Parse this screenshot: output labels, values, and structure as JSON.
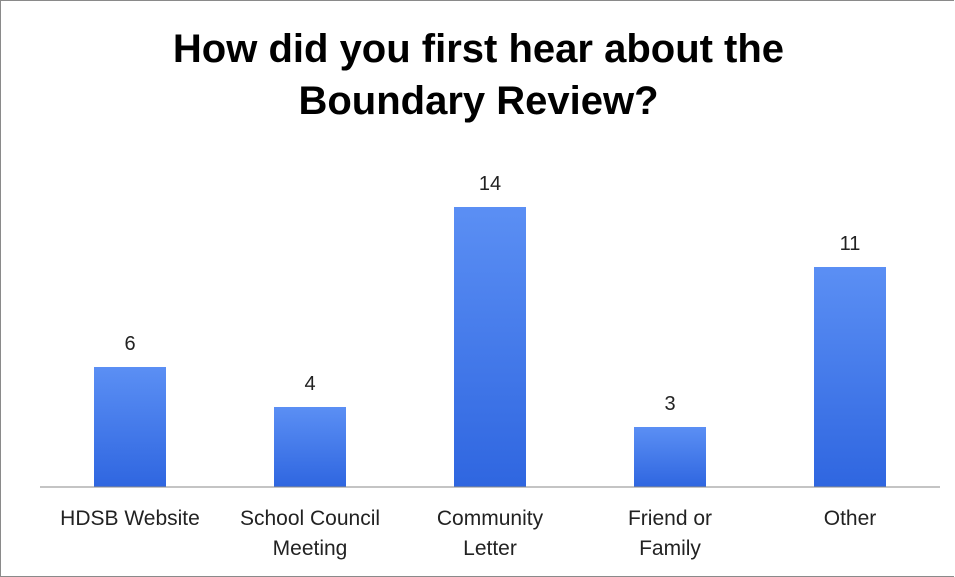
{
  "chart_data": {
    "type": "bar",
    "title": [
      "How did you first hear about the",
      "Boundary Review?"
    ],
    "categories": [
      [
        "HDSB Website"
      ],
      [
        "School Council",
        "Meeting"
      ],
      [
        "Community",
        "Letter"
      ],
      [
        "Friend or",
        "Family"
      ],
      [
        "Other"
      ]
    ],
    "values": [
      6,
      4,
      14,
      3,
      11
    ],
    "data_labels": [
      "6",
      "4",
      "14",
      "3",
      "11"
    ],
    "ylim": [
      0,
      14
    ],
    "xlabel": "",
    "ylabel": "",
    "grid": false,
    "legend": "none",
    "bar_color_top": "#5b8ff4",
    "bar_color_bottom": "#2f66e0",
    "axis_color": "#8a8a8a"
  }
}
